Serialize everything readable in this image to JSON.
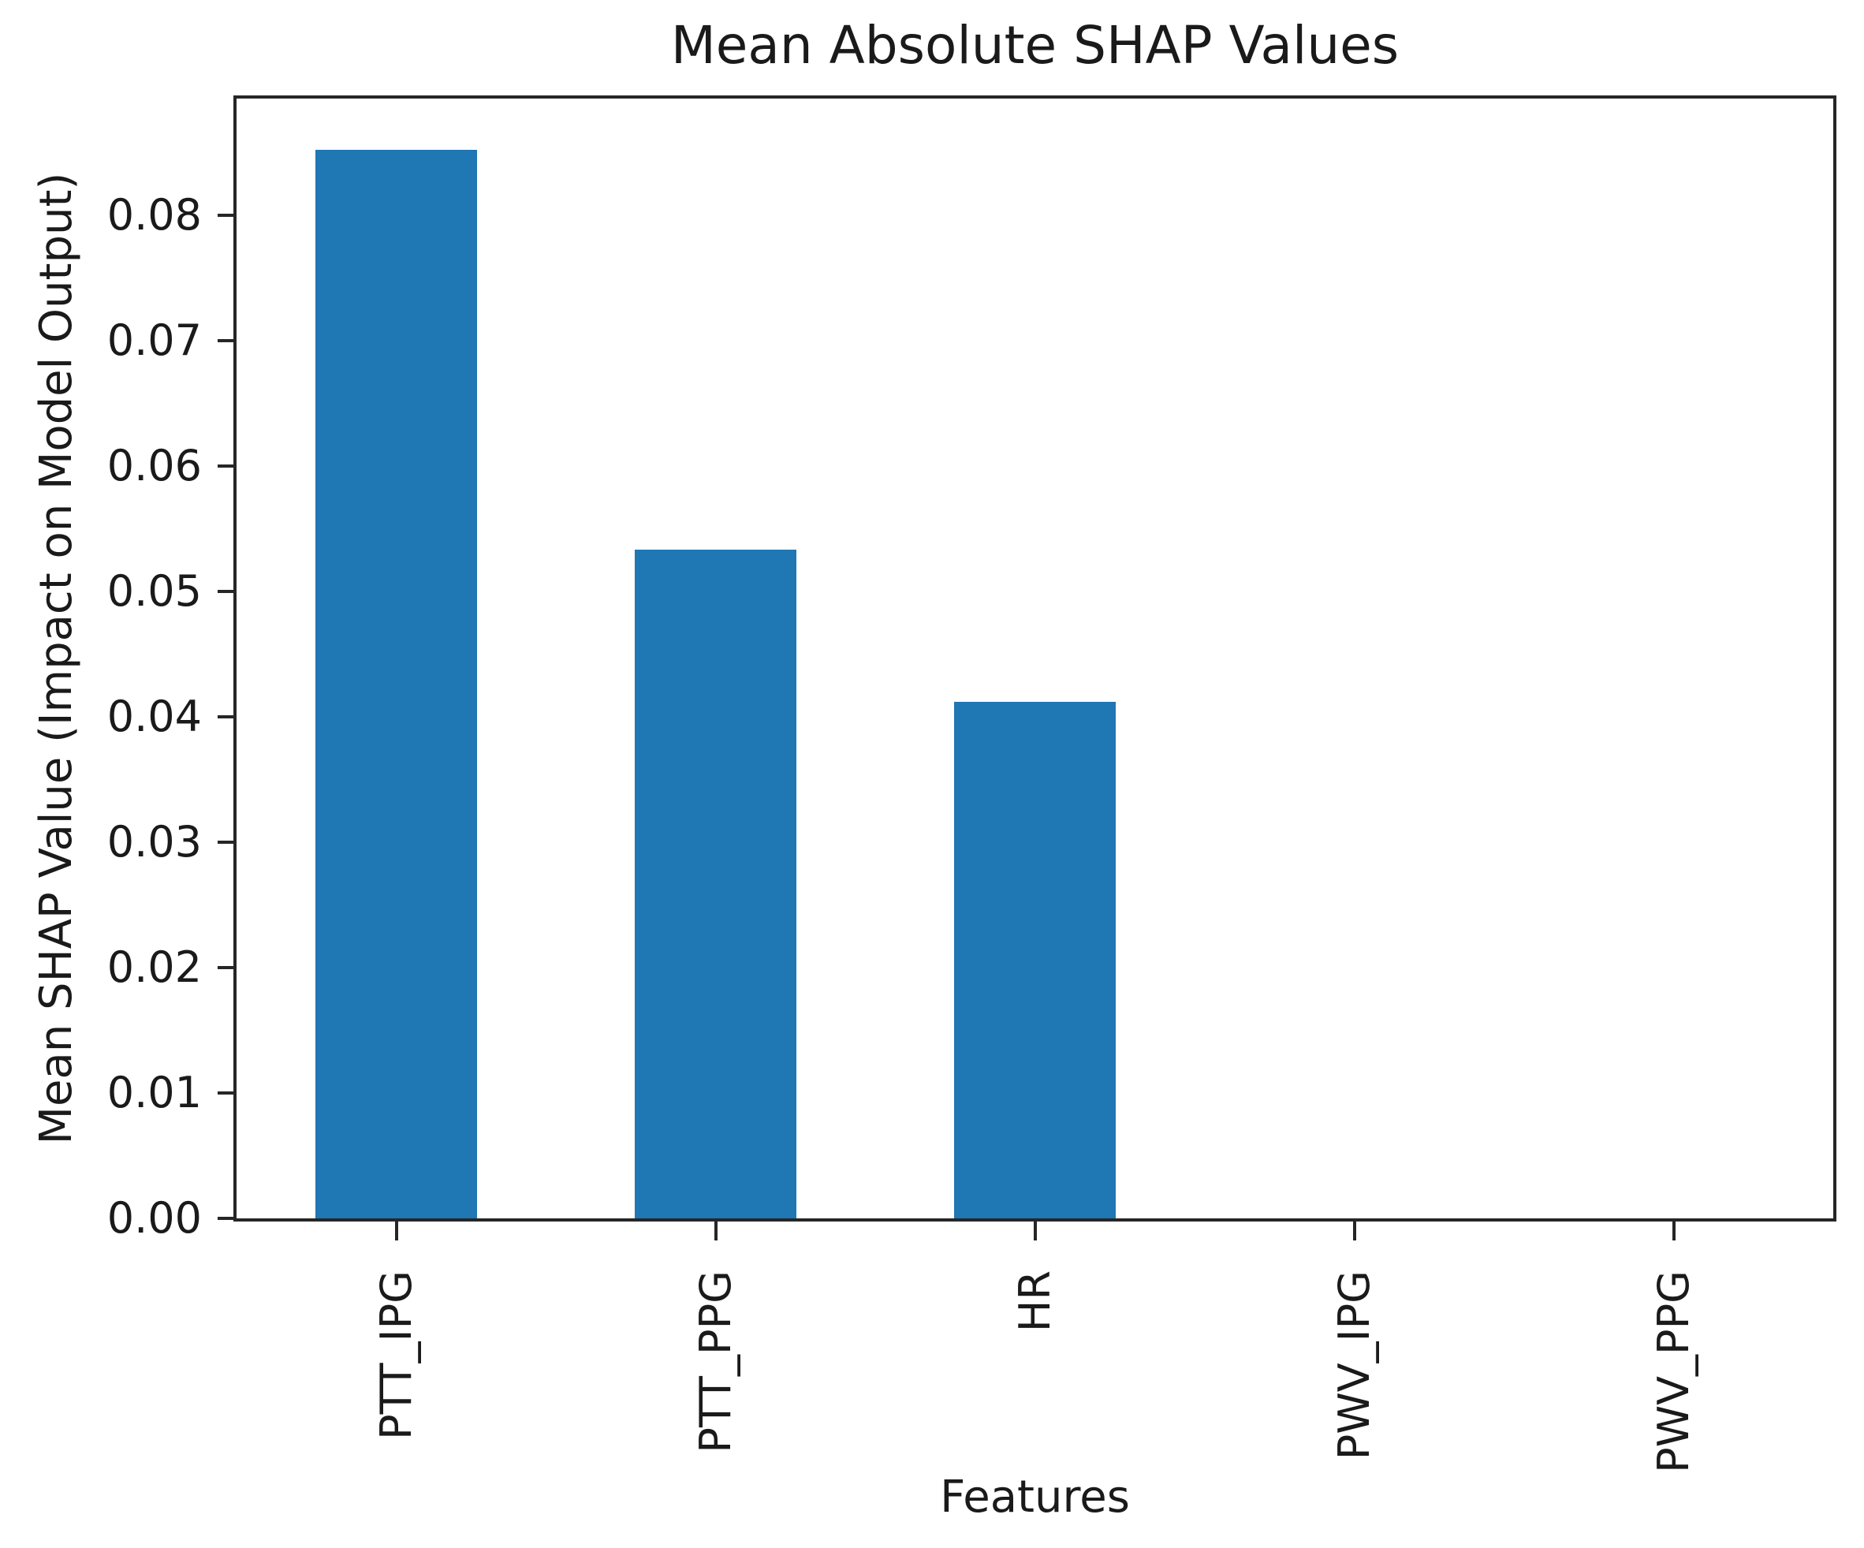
{
  "chart_data": {
    "type": "bar",
    "title": "Mean Absolute SHAP Values",
    "xlabel": "Features",
    "ylabel": "Mean SHAP Value (Impact on Model Output)",
    "categories": [
      "PTT_IPG",
      "PTT_PPG",
      "HR",
      "PWV_IPG",
      "PWV_PPG"
    ],
    "values": [
      0.0852,
      0.0533,
      0.0412,
      0.0,
      0.0
    ],
    "ylim": [
      0,
      0.0893
    ],
    "yticks": [
      0.0,
      0.01,
      0.02,
      0.03,
      0.04,
      0.05,
      0.06,
      0.07,
      0.08
    ],
    "ytick_labels": [
      "0.00",
      "0.01",
      "0.02",
      "0.03",
      "0.04",
      "0.05",
      "0.06",
      "0.07",
      "0.08"
    ],
    "bar_color": "#1f77b4",
    "text_color": "#1a1a1a",
    "axis_color": "#262626",
    "x_tick_rotation": 90,
    "grid": false,
    "legend": false
  }
}
